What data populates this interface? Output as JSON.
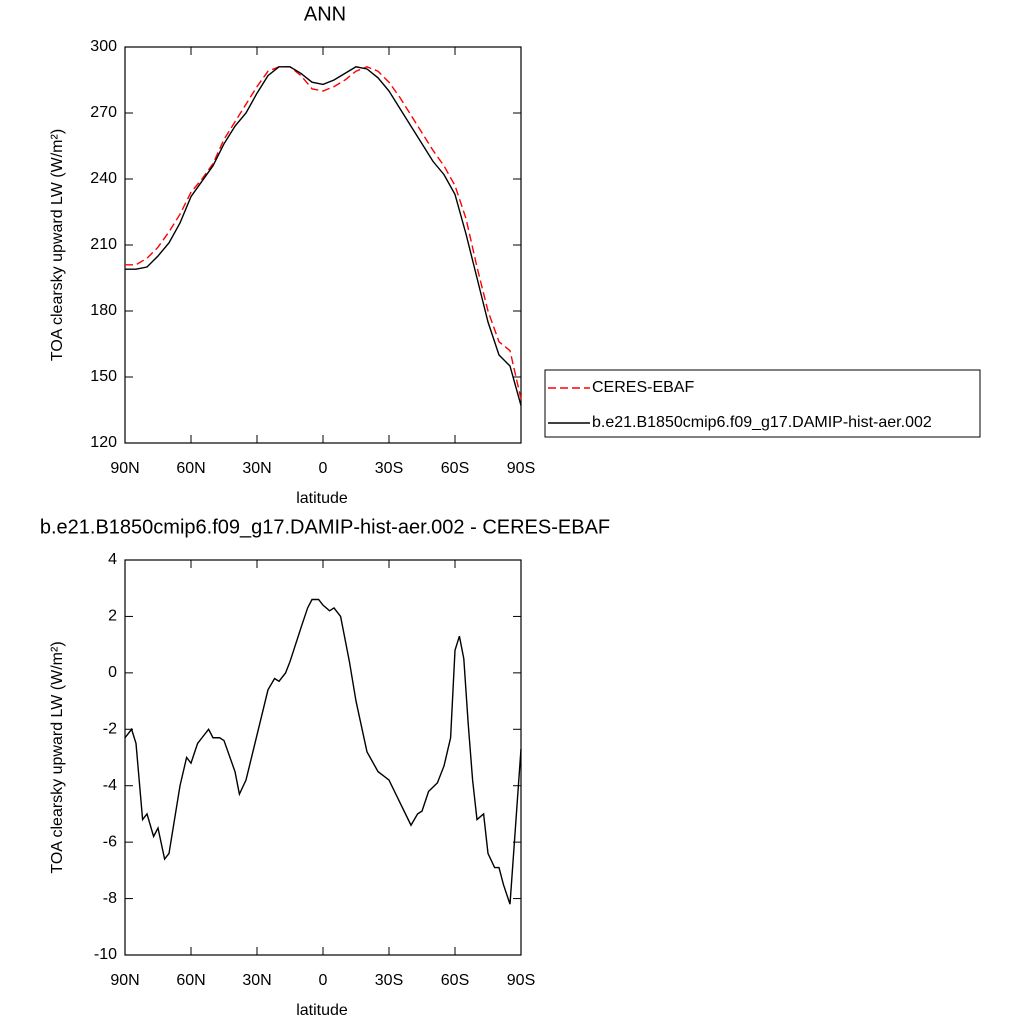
{
  "chart_data": [
    {
      "type": "line",
      "title": "ANN",
      "xlabel": "latitude",
      "ylabel": "TOA clearsky upward LW (W/m²)",
      "x": [
        90,
        85,
        80,
        75,
        70,
        65,
        60,
        55,
        50,
        45,
        40,
        35,
        30,
        25,
        20,
        15,
        10,
        5,
        0,
        -5,
        -10,
        -15,
        -20,
        -25,
        -30,
        -35,
        -40,
        -45,
        -50,
        -55,
        -60,
        -65,
        -70,
        -75,
        -80,
        -85,
        -90
      ],
      "series": [
        {
          "name": "CERES-EBAF",
          "color": "#ff0000",
          "dashed": true,
          "values": [
            201,
            201,
            204,
            209,
            216,
            224,
            234,
            240,
            247,
            258,
            266,
            274,
            282,
            289,
            291,
            291,
            287,
            281,
            280,
            282,
            285,
            289,
            291,
            289,
            284,
            277,
            269,
            261,
            253,
            246,
            237,
            222,
            200,
            180,
            166,
            162,
            140
          ]
        },
        {
          "name": "b.e21.B1850cmip6.f09_g17.DAMIP-hist-aer.002",
          "color": "#000000",
          "dashed": false,
          "values": [
            199,
            199,
            200,
            205,
            211,
            220,
            232,
            239,
            246,
            256,
            264,
            270,
            279,
            287,
            291,
            291,
            288,
            284,
            283,
            285,
            288,
            291,
            290,
            286,
            280,
            272,
            264,
            256,
            248,
            242,
            233,
            215,
            195,
            175,
            160,
            155,
            137
          ]
        }
      ],
      "xlim": [
        90,
        -90
      ],
      "xticks": [
        {
          "value": 90,
          "label": "90N"
        },
        {
          "value": 60,
          "label": "60N"
        },
        {
          "value": 30,
          "label": "30N"
        },
        0,
        {
          "value": -30,
          "label": "30S"
        },
        {
          "value": -60,
          "label": "60S"
        },
        {
          "value": -90,
          "label": "90S"
        }
      ],
      "ylim": [
        120,
        300
      ],
      "yticks": [
        120,
        150,
        180,
        210,
        240,
        270,
        300
      ],
      "legend": "right"
    },
    {
      "type": "line",
      "title": "b.e21.B1850cmip6.f09_g17.DAMIP-hist-aer.002 - CERES-EBAF",
      "xlabel": "latitude",
      "ylabel": "TOA clearsky upward LW (W/m²)",
      "x": [
        90,
        87,
        85,
        82,
        80,
        77,
        75,
        72,
        70,
        65,
        62,
        60,
        57,
        55,
        52,
        50,
        47,
        45,
        40,
        38,
        35,
        30,
        25,
        22,
        20,
        17,
        15,
        10,
        7,
        5,
        2,
        0,
        -3,
        -5,
        -8,
        -12,
        -15,
        -20,
        -25,
        -30,
        -35,
        -40,
        -43,
        -45,
        -48,
        -52,
        -55,
        -58,
        -60,
        -62,
        -64,
        -66,
        -68,
        -70,
        -73,
        -75,
        -78,
        -80,
        -82,
        -85,
        -87,
        -90
      ],
      "series": [
        {
          "color": "#000000",
          "values": [
            -2.3,
            -2,
            -2.5,
            -5.2,
            -5,
            -5.8,
            -5.5,
            -6.6,
            -6.4,
            -4,
            -3,
            -3.2,
            -2.5,
            -2.3,
            -2,
            -2.3,
            -2.3,
            -2.4,
            -3.5,
            -4.3,
            -3.8,
            -2.2,
            -0.6,
            -0.2,
            -0.3,
            0,
            0.4,
            1.6,
            2.3,
            2.6,
            2.6,
            2.4,
            2.2,
            2.3,
            2,
            0.4,
            -1,
            -2.8,
            -3.5,
            -3.8,
            -4.6,
            -5.4,
            -5,
            -4.9,
            -4.2,
            -3.9,
            -3.3,
            -2.3,
            0.8,
            1.3,
            0.5,
            -1.8,
            -3.8,
            -5.2,
            -5,
            -6.4,
            -6.9,
            -6.9,
            -7.5,
            -8.2,
            -6,
            -2.7
          ]
        }
      ],
      "xlim": [
        90,
        -90
      ],
      "xticks": [
        {
          "value": 90,
          "label": "90N"
        },
        {
          "value": 60,
          "label": "60N"
        },
        {
          "value": 30,
          "label": "30N"
        },
        0,
        {
          "value": -30,
          "label": "30S"
        },
        {
          "value": -60,
          "label": "60S"
        },
        {
          "value": -90,
          "label": "90S"
        }
      ],
      "ylim": [
        -10,
        4
      ],
      "yticks": [
        -10,
        -8,
        -6,
        -4,
        -2,
        0,
        2,
        4
      ]
    }
  ]
}
